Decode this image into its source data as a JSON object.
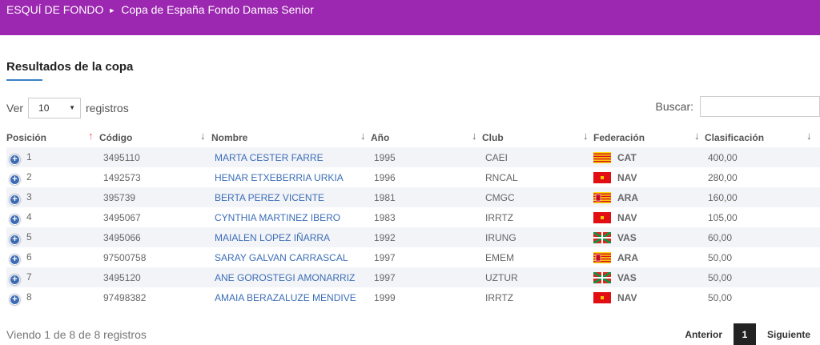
{
  "breadcrumb": {
    "root": "ESQUÍ DE FONDO",
    "current": "Copa de España Fondo Damas Senior"
  },
  "section": {
    "title": "Resultados de la copa"
  },
  "length": {
    "prefix": "Ver",
    "value": "10",
    "suffix": "registros"
  },
  "search": {
    "label": "Buscar:",
    "value": ""
  },
  "table": {
    "headers": [
      "Posición",
      "Código",
      "Nombre",
      "Año",
      "Club",
      "Federación",
      "Clasificación"
    ],
    "rows": [
      {
        "pos": "1",
        "code": "3495110",
        "name": "MARTA CESTER FARRE",
        "year": "1995",
        "club": "CAEI",
        "fed": "CAT",
        "flag": "catalonia",
        "score": "400,00"
      },
      {
        "pos": "2",
        "code": "1492573",
        "name": "HENAR ETXEBERRIA URKIA",
        "year": "1996",
        "club": "RNCAL",
        "fed": "NAV",
        "flag": "navarre",
        "score": "280,00"
      },
      {
        "pos": "3",
        "code": "395739",
        "name": "BERTA PEREZ VICENTE",
        "year": "1981",
        "club": "CMGC",
        "fed": "ARA",
        "flag": "aragon",
        "score": "160,00"
      },
      {
        "pos": "4",
        "code": "3495067",
        "name": "CYNTHIA MARTINEZ IBERO",
        "year": "1983",
        "club": "IRRTZ",
        "fed": "NAV",
        "flag": "navarre",
        "score": "105,00"
      },
      {
        "pos": "5",
        "code": "3495066",
        "name": "MAIALEN LOPEZ IÑARRA",
        "year": "1992",
        "club": "IRUNG",
        "fed": "VAS",
        "flag": "basque",
        "score": "60,00"
      },
      {
        "pos": "6",
        "code": "97500758",
        "name": "SARAY GALVAN CARRASCAL",
        "year": "1997",
        "club": "EMEM",
        "fed": "ARA",
        "flag": "aragon",
        "score": "50,00"
      },
      {
        "pos": "7",
        "code": "3495120",
        "name": "ANE GOROSTEGI AMONARRIZ",
        "year": "1997",
        "club": "UZTUR",
        "fed": "VAS",
        "flag": "basque",
        "score": "50,00"
      },
      {
        "pos": "8",
        "code": "97498382",
        "name": "AMAIA BERAZALUZE MENDIVE",
        "year": "1999",
        "club": "IRRTZ",
        "fed": "NAV",
        "flag": "navarre",
        "score": "50,00"
      }
    ]
  },
  "footer": {
    "info": "Viendo 1 de 8 de 8 registros",
    "prev": "Anterior",
    "page": "1",
    "next": "Siguiente"
  },
  "colors": {
    "topbar": "#9c27b0",
    "accent": "#3b82c4",
    "link": "#3b6eb5"
  }
}
